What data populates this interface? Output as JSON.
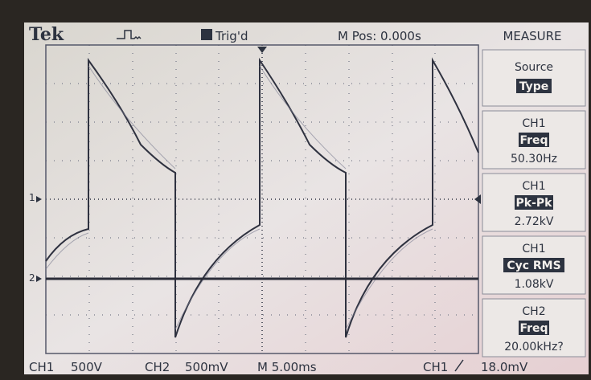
{
  "header": {
    "brand": "Tek",
    "status": "Trig'd",
    "position": "M Pos: 0.000s",
    "menu_title": "MEASURE"
  },
  "menu": [
    {
      "label": "Source",
      "value": "Type"
    },
    {
      "channel": "CH1",
      "type": "Freq",
      "reading": "50.30Hz"
    },
    {
      "channel": "CH1",
      "type": "Pk-Pk",
      "reading": "2.72kV"
    },
    {
      "channel": "CH1",
      "type": "Cyc RMS",
      "reading": "1.08kV"
    },
    {
      "channel": "CH2",
      "type": "Freq",
      "reading": "20.00kHz?"
    }
  ],
  "markers": [
    "1",
    "2"
  ],
  "footer": {
    "ch1": "CH1",
    "ch1_scale": "500V",
    "ch2": "CH2",
    "ch2_scale": "500mV",
    "timebase": "M 5.00ms",
    "trigger_source": "CH1",
    "trigger_level": "18.0mV"
  }
}
